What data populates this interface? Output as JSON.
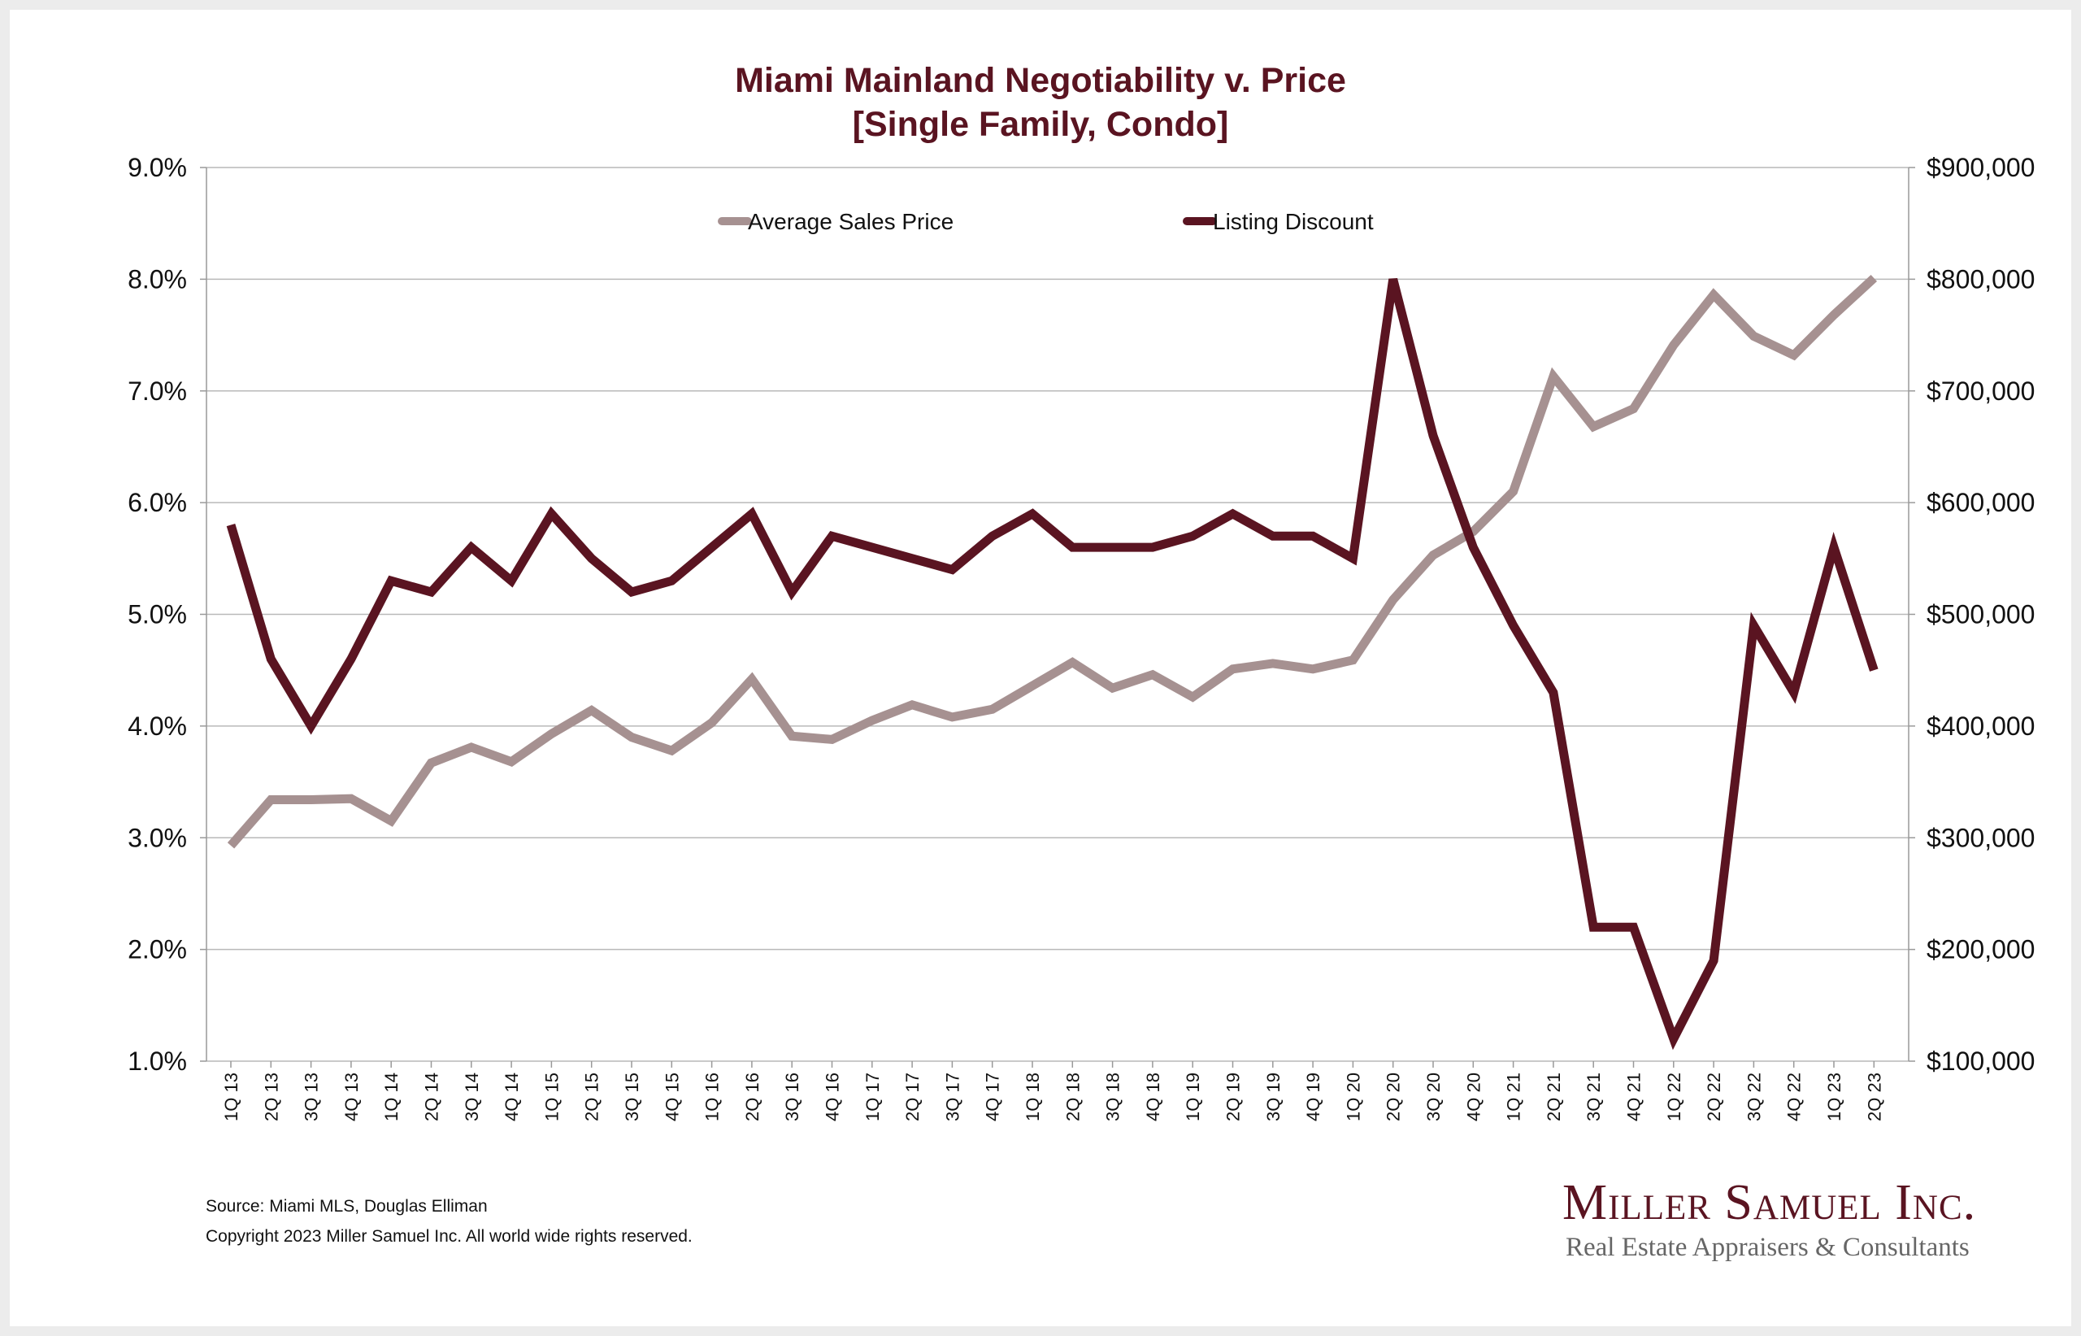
{
  "chart_data": {
    "type": "line",
    "title": "Miami Mainland Negotiability v. Price",
    "subtitle": "[Single Family, Condo]",
    "categories": [
      "1Q 13",
      "2Q 13",
      "3Q 13",
      "4Q 13",
      "1Q 14",
      "2Q 14",
      "3Q 14",
      "4Q 14",
      "1Q 15",
      "2Q 15",
      "3Q 15",
      "4Q 15",
      "1Q 16",
      "2Q 16",
      "3Q 16",
      "4Q 16",
      "1Q 17",
      "2Q 17",
      "3Q 17",
      "4Q 17",
      "1Q 18",
      "2Q 18",
      "3Q 18",
      "4Q 18",
      "1Q 19",
      "2Q 19",
      "3Q 19",
      "4Q 19",
      "1Q 20",
      "2Q 20",
      "3Q 20",
      "4Q 20",
      "1Q 21",
      "2Q 21",
      "3Q 21",
      "4Q 21",
      "1Q 22",
      "2Q 22",
      "3Q 22",
      "4Q 22",
      "1Q 23",
      "2Q 23"
    ],
    "series": [
      {
        "name": "Average Sales Price",
        "axis": "right",
        "color": "#a69191",
        "values": [
          293000,
          334000,
          334000,
          335000,
          315000,
          367000,
          381000,
          368000,
          393000,
          414000,
          390000,
          378000,
          403000,
          442000,
          391000,
          388000,
          405000,
          419000,
          408000,
          415000,
          436000,
          457000,
          434000,
          446000,
          426000,
          451000,
          456000,
          451000,
          459000,
          513000,
          553000,
          574000,
          610000,
          713000,
          668000,
          684000,
          741000,
          786000,
          749000,
          732000,
          768000,
          801000
        ]
      },
      {
        "name": "Listing Discount",
        "axis": "left",
        "color": "#5a1421",
        "values": [
          5.8,
          4.6,
          4.0,
          4.6,
          5.3,
          5.2,
          5.6,
          5.3,
          5.9,
          5.5,
          5.2,
          5.3,
          5.6,
          5.9,
          5.2,
          5.7,
          5.6,
          5.5,
          5.4,
          5.7,
          5.9,
          5.6,
          5.6,
          5.6,
          5.7,
          5.9,
          5.7,
          5.7,
          5.5,
          8.0,
          6.6,
          5.6,
          4.9,
          4.3,
          2.2,
          2.2,
          1.2,
          1.9,
          4.9,
          4.3,
          5.6,
          4.5
        ]
      }
    ],
    "y_left": {
      "ylim": [
        1.0,
        9.0
      ],
      "ticks": [
        "1.0%",
        "2.0%",
        "3.0%",
        "4.0%",
        "5.0%",
        "6.0%",
        "7.0%",
        "8.0%",
        "9.0%"
      ]
    },
    "y_right": {
      "ylim": [
        100000,
        900000
      ],
      "ticks": [
        "$100,000",
        "$200,000",
        "$300,000",
        "$400,000",
        "$500,000",
        "$600,000",
        "$700,000",
        "$800,000",
        "$900,000"
      ]
    },
    "grid": true,
    "legend": "top-center"
  },
  "footer": {
    "source": "Source: Miami MLS, Douglas Elliman",
    "copyright": "Copyright 2023 Miller Samuel Inc.  All world wide rights reserved."
  },
  "logo": {
    "name": "Miller Samuel Inc.",
    "tagline": "Real Estate Appraisers & Consultants"
  }
}
